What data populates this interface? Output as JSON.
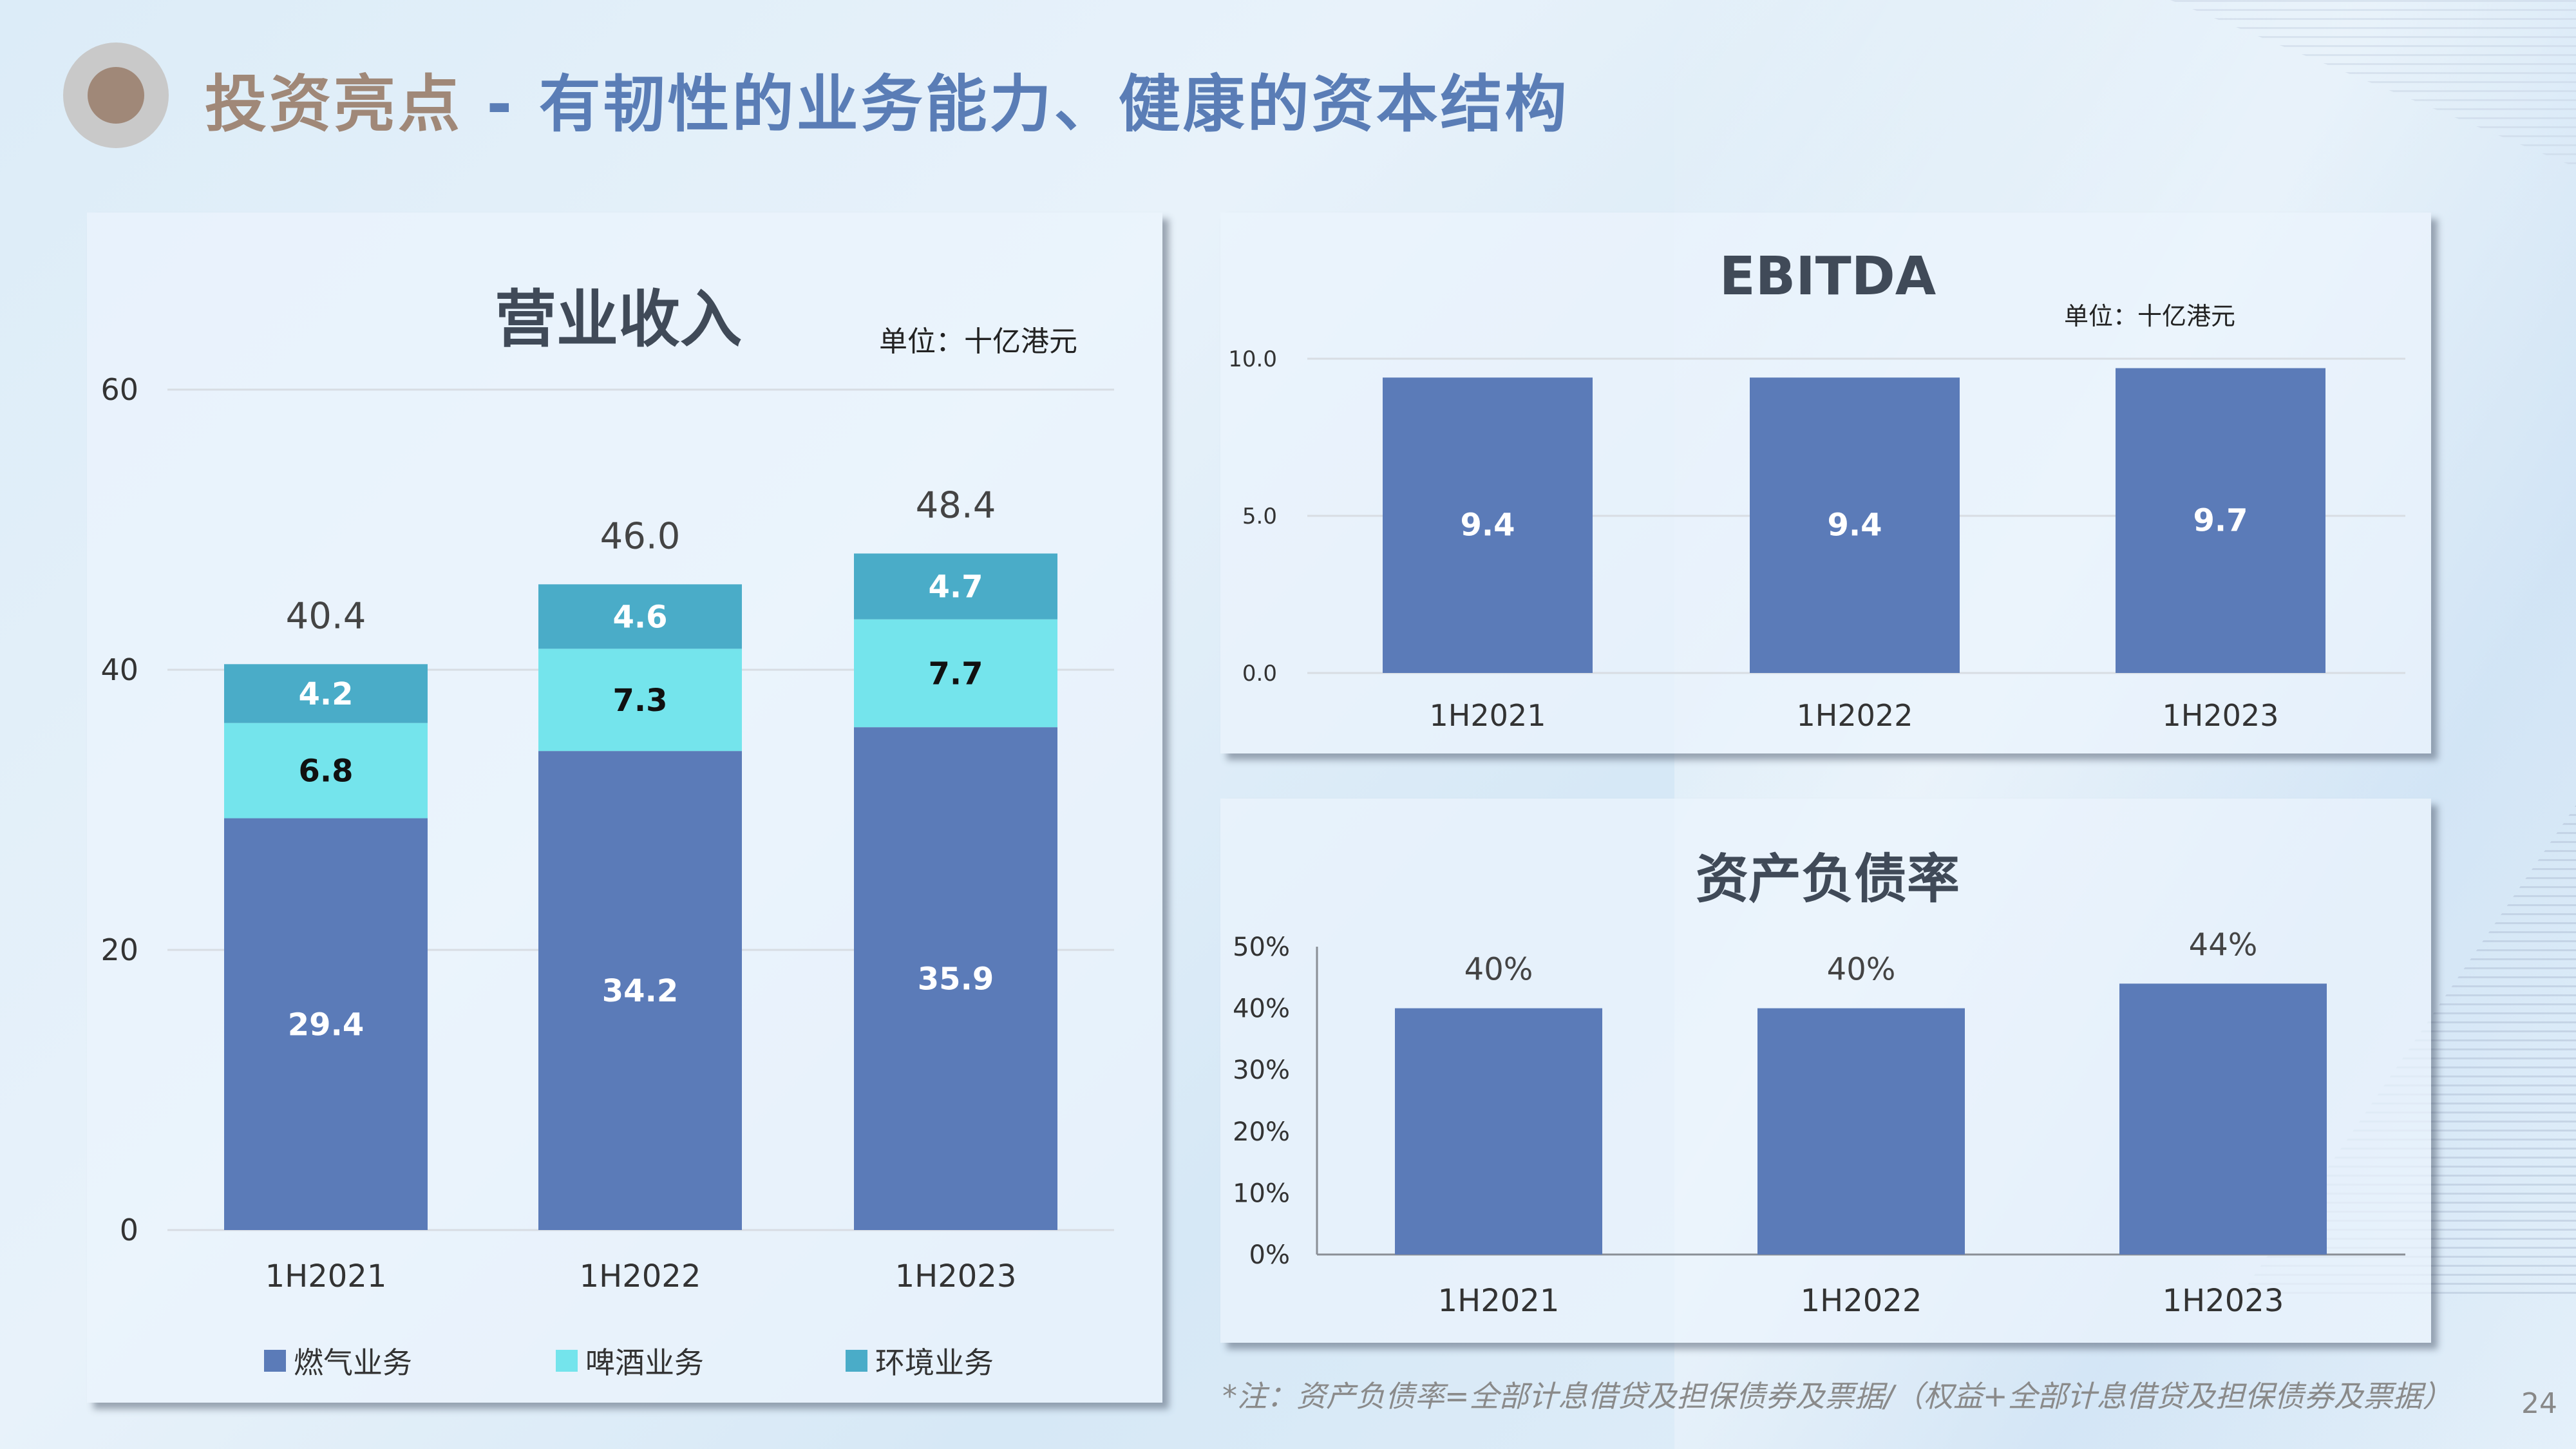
{
  "header": {
    "title_highlight": "投资亮点",
    "title_rest": " - 有韧性的业务能力、健康的资本结构"
  },
  "colors": {
    "gas": "#5b7bb8",
    "beer": "#74e4ec",
    "env": "#4aacc8",
    "title": "#5a7db6",
    "highlight": "#a08878"
  },
  "chart_data": [
    {
      "type": "bar",
      "stacked": true,
      "title": "营业收入",
      "unit": "单位：十亿港元",
      "categories": [
        "1H2021",
        "1H2022",
        "1H2023"
      ],
      "series": [
        {
          "name": "燃气业务",
          "values": [
            29.4,
            34.2,
            35.9
          ]
        },
        {
          "name": "啤酒业务",
          "values": [
            6.8,
            7.3,
            7.7
          ]
        },
        {
          "name": "环境业务",
          "values": [
            4.2,
            4.6,
            4.7
          ]
        }
      ],
      "totals": [
        "40.4",
        "46.0",
        "48.4"
      ],
      "yticks": [
        "0",
        "20",
        "40",
        "60"
      ],
      "ylim": [
        0,
        60
      ],
      "grid": true,
      "legend": "bottom"
    },
    {
      "type": "bar",
      "title": "EBITDA",
      "unit": "单位：十亿港元",
      "categories": [
        "1H2021",
        "1H2022",
        "1H2023"
      ],
      "values": [
        9.4,
        9.4,
        9.7
      ],
      "labels": [
        "9.4",
        "9.4",
        "9.7"
      ],
      "yticks": [
        "0.0",
        "5.0",
        "10.0"
      ],
      "ylim": [
        0,
        10
      ],
      "grid": true
    },
    {
      "type": "bar",
      "title": "资产负债率",
      "categories": [
        "1H2021",
        "1H2022",
        "1H2023"
      ],
      "values": [
        40,
        40,
        44
      ],
      "labels": [
        "40%",
        "40%",
        "44%"
      ],
      "yticks": [
        "0%",
        "10%",
        "20%",
        "30%",
        "40%",
        "50%"
      ],
      "ylim": [
        0,
        50
      ],
      "grid": false
    }
  ],
  "footnote": "*注：资产负债率=全部计息借贷及担保债券及票据/（权益+全部计息借贷及担保债券及票据）",
  "page_number": "24"
}
